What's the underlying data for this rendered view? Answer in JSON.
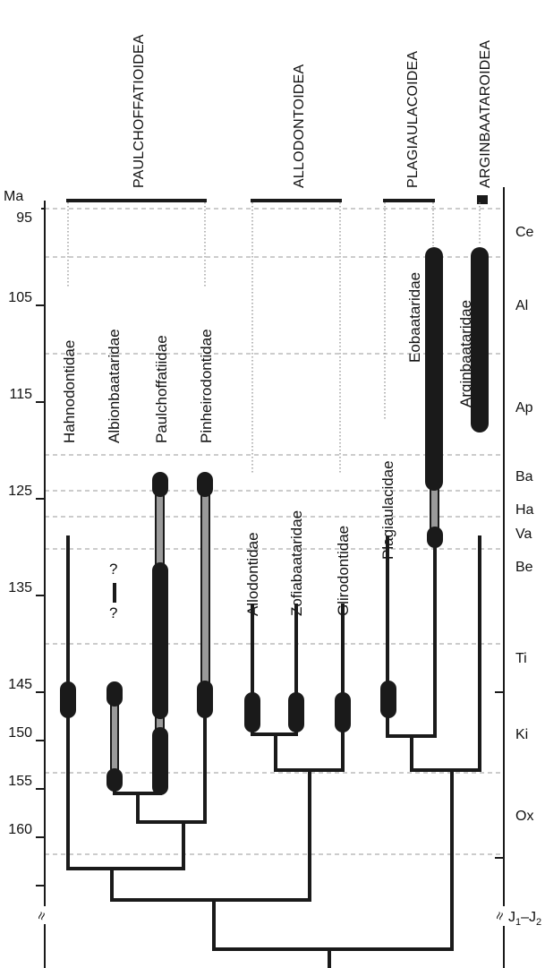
{
  "axis": {
    "unit": "Ma",
    "ticks": [
      "95",
      "105",
      "115",
      "125",
      "135",
      "145",
      "150",
      "155",
      "160"
    ],
    "break_symbol": "≈"
  },
  "stages": [
    "Ce",
    "Al",
    "Ap",
    "Ba",
    "Ha",
    "Va",
    "Be",
    "Ti",
    "Ki",
    "Ox"
  ],
  "lower_stage": {
    "main": "J",
    "sub1": "1",
    "dash": "–",
    "main2": "J",
    "sub2": "2"
  },
  "superfamilies": [
    "PAULCHOFFATIOIDEA",
    "ALLODONTOIDEA",
    "PLAGIAULACOIDEA",
    "ARGINBAATAROIDEA"
  ],
  "families": {
    "hahnodontidae": "Hahnodontidae",
    "albionbaataridae": "Albionbaataridae",
    "paulchoffatiidae": "Paulchoffatiidae",
    "pinheirodontidae": "Pinheirodontidae",
    "allodontidae": "Allodontidae",
    "zofiabaataridae": "Zofiabaataridae",
    "glirodontidae": "Glirodontidae",
    "plagiaulacidae": "Plagiaulacidae",
    "eobaataridae": "Eobaataridae",
    "arginbaataridae": "Arginbaataridae"
  },
  "uncertainty_marks": [
    "?",
    "?"
  ],
  "colors": {
    "ink": "#1a1a1a",
    "ghost_range": "#9a9a9a",
    "grid": "#999999"
  }
}
